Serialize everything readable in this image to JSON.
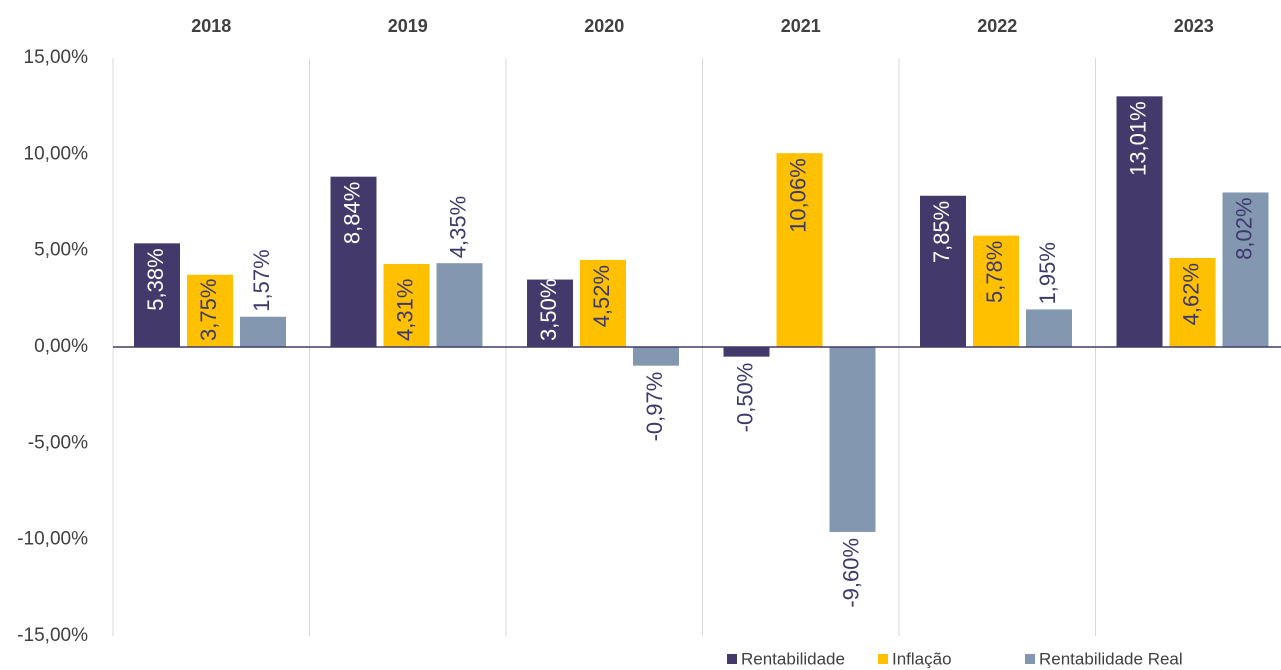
{
  "chart_data": {
    "type": "bar",
    "categories": [
      "2018",
      "2019",
      "2020",
      "2021",
      "2022",
      "2023"
    ],
    "series": [
      {
        "name": "Rentabilidade",
        "color": "#433a6b",
        "values": [
          5.38,
          8.84,
          3.5,
          -0.5,
          7.85,
          13.01
        ],
        "value_labels": [
          "5,38%",
          "8,84%",
          "3,50%",
          "-0,50%",
          "7,85%",
          "13,01%"
        ]
      },
      {
        "name": "Inflação",
        "color": "#ffc000",
        "values": [
          3.75,
          4.31,
          4.52,
          10.06,
          5.78,
          4.62
        ],
        "value_labels": [
          "3,75%",
          "4,31%",
          "4,52%",
          "10,06%",
          "5,78%",
          "4,62%"
        ]
      },
      {
        "name": "Rentabilidade Real",
        "color": "#8497b0",
        "values": [
          1.57,
          4.35,
          -0.97,
          -9.6,
          1.95,
          8.02
        ],
        "value_labels": [
          "1,57%",
          "4,35%",
          "-0,97%",
          "-9,60%",
          "1,95%",
          "8,02%"
        ]
      }
    ],
    "ylim": [
      -15,
      15
    ],
    "yticks": [
      {
        "value": -15,
        "label": "-15,00%"
      },
      {
        "value": -10,
        "label": "-10,00%"
      },
      {
        "value": -5,
        "label": "-5,00%"
      },
      {
        "value": 0,
        "label": "0,00%"
      },
      {
        "value": 5,
        "label": "5,00%"
      },
      {
        "value": 10,
        "label": "10,00%"
      },
      {
        "value": 15,
        "label": "15,00%"
      }
    ],
    "legend": "bottom-right"
  }
}
